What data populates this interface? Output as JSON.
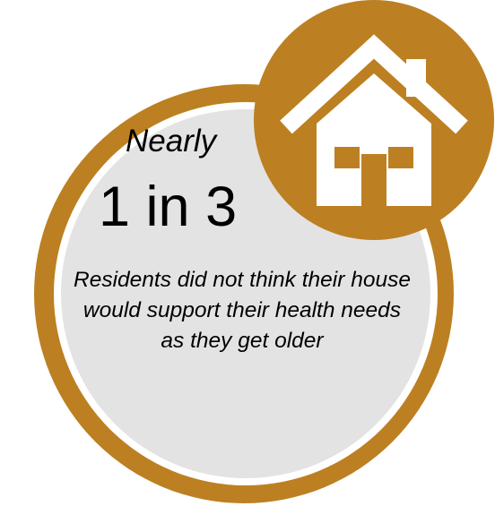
{
  "infographic": {
    "lead": "Nearly",
    "stat": "1 in 3",
    "caption": "Residents did not think their house would support their health needs as they get older",
    "icon": "house-icon"
  },
  "colors": {
    "ring": "#BC8022",
    "ring_edge": "#ffffff",
    "inner_fill": "#E3E3E3",
    "house": "#ffffff"
  }
}
